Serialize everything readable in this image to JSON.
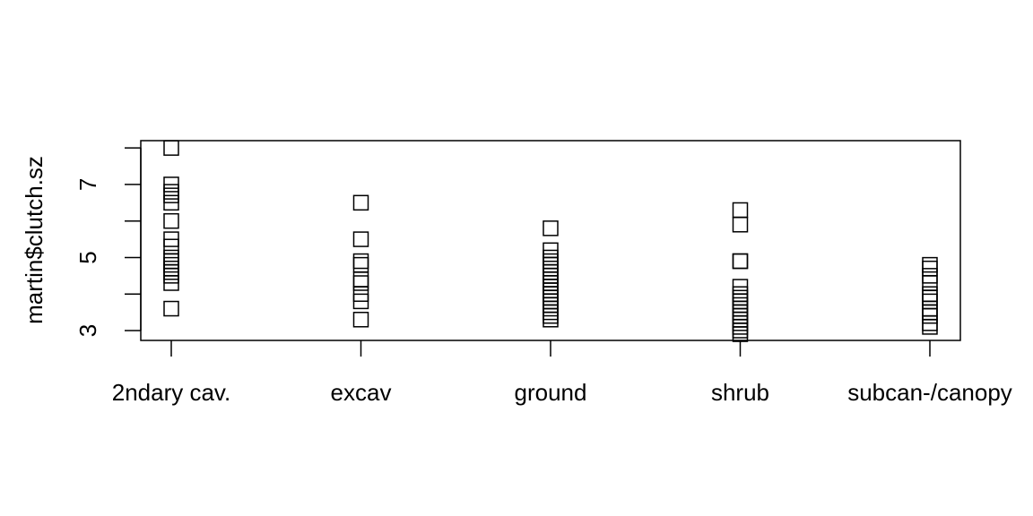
{
  "chart_data": {
    "type": "strip",
    "y_label": "martin$clutch.sz",
    "categories": [
      "2ndary cav.",
      "excav",
      "ground",
      "shrub",
      "subcan-/canopy"
    ],
    "values": [
      [
        8.0,
        7.0,
        6.8,
        6.7,
        6.5,
        6.0,
        5.5,
        5.3,
        5.0,
        4.9,
        4.8,
        4.7,
        4.6,
        4.5,
        4.3,
        3.6
      ],
      [
        6.5,
        5.5,
        4.9,
        4.8,
        4.4,
        4.3,
        4.0,
        3.8,
        3.3
      ],
      [
        5.8,
        5.2,
        5.0,
        4.9,
        4.8,
        4.7,
        4.6,
        4.5,
        4.4,
        4.3,
        4.2,
        4.1,
        4.0,
        3.9,
        3.8,
        3.7,
        3.6,
        3.5,
        3.4,
        3.3
      ],
      [
        6.3,
        5.9,
        4.9,
        4.9,
        4.2,
        4.0,
        3.9,
        3.8,
        3.7,
        3.6,
        3.5,
        3.4,
        3.3,
        3.2,
        3.1,
        3.0,
        2.9
      ],
      [
        4.8,
        4.7,
        4.5,
        4.3,
        4.0,
        3.9,
        3.8,
        3.6,
        3.5,
        3.4,
        3.2,
        3.1
      ]
    ],
    "color": "#000000",
    "ylim": [
      2.73,
      8.2
    ],
    "yticks": [
      3,
      5,
      7
    ],
    "yminorticks": [
      4,
      6,
      8
    ]
  }
}
